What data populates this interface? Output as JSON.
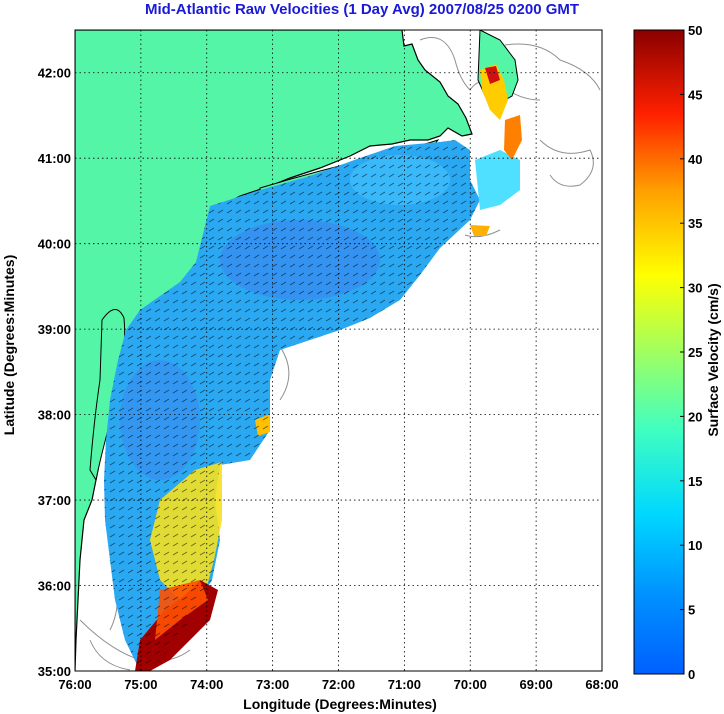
{
  "title": "Mid-Atlantic Raw Velocities (1 Day Avg) 2007/08/25 0200 GMT",
  "axes": {
    "xlabel": "Longitude (Degrees:Minutes)",
    "ylabel": "Latitude (Degrees:Minutes)",
    "x_ticks": [
      "76:00",
      "75:00",
      "74:00",
      "73:00",
      "72:00",
      "71:00",
      "70:00",
      "69:00",
      "68:00"
    ],
    "y_ticks": [
      "42:00",
      "41:00",
      "40:00",
      "39:00",
      "38:00",
      "37:00",
      "36:00",
      "35:00"
    ],
    "xlim": [
      -76,
      -68
    ],
    "ylim": [
      35,
      42.5
    ]
  },
  "colorbar": {
    "label": "Surface Velocity (cm/s)",
    "ticks": [
      "50",
      "45",
      "40",
      "35",
      "30",
      "25",
      "20",
      "15",
      "10",
      "5",
      "0"
    ],
    "range": [
      0,
      50
    ]
  },
  "colors": {
    "land": "#55f5a8",
    "coast": "#000000",
    "grid": "#000000",
    "title": "#1a1ad6",
    "bathymetry": "#909090"
  }
}
